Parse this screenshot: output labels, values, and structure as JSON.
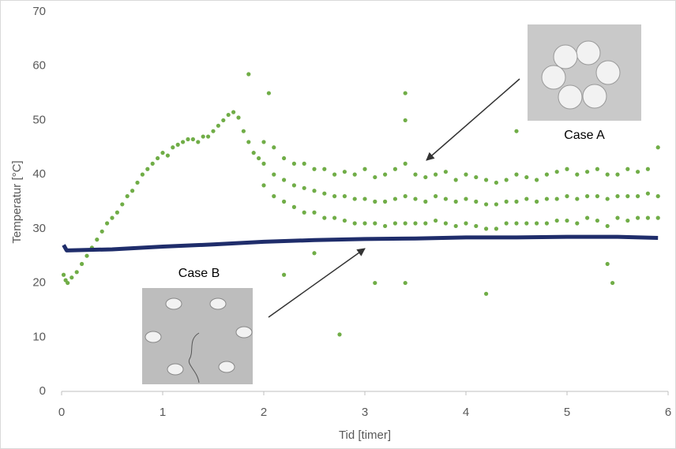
{
  "chart_data": {
    "type": "scatter",
    "xlabel": "Tid [timer]",
    "ylabel": "Temperatur  [°C]",
    "xlim": [
      0,
      6
    ],
    "ylim": [
      0,
      70
    ],
    "xticks": [
      0,
      1,
      2,
      3,
      4,
      5,
      6
    ],
    "yticks": [
      0,
      10,
      20,
      30,
      40,
      50,
      60,
      70
    ],
    "grid": false,
    "series": [
      {
        "name": "Case A",
        "color": "#70ad47",
        "mode": "markers",
        "x": [
          0.02,
          0.04,
          0.06,
          0.1,
          0.15,
          0.2,
          0.25,
          0.3,
          0.35,
          0.4,
          0.45,
          0.5,
          0.55,
          0.6,
          0.65,
          0.7,
          0.75,
          0.8,
          0.85,
          0.9,
          0.95,
          1.0,
          1.05,
          1.1,
          1.15,
          1.2,
          1.25,
          1.3,
          1.35,
          1.4,
          1.45,
          1.5,
          1.55,
          1.6,
          1.65,
          1.7,
          1.75,
          1.8,
          1.85,
          1.9,
          1.95,
          2.0,
          2.0,
          2.0,
          2.1,
          2.1,
          2.1,
          2.2,
          2.2,
          2.2,
          2.3,
          2.3,
          2.3,
          2.4,
          2.4,
          2.4,
          2.5,
          2.5,
          2.5,
          2.6,
          2.6,
          2.6,
          2.7,
          2.7,
          2.7,
          2.8,
          2.8,
          2.8,
          2.9,
          2.9,
          2.9,
          3.0,
          3.0,
          3.0,
          3.1,
          3.1,
          3.1,
          3.2,
          3.2,
          3.2,
          3.3,
          3.3,
          3.3,
          3.4,
          3.4,
          3.4,
          3.5,
          3.5,
          3.5,
          3.6,
          3.6,
          3.6,
          3.7,
          3.7,
          3.7,
          3.8,
          3.8,
          3.8,
          3.9,
          3.9,
          3.9,
          4.0,
          4.0,
          4.0,
          4.1,
          4.1,
          4.1,
          4.2,
          4.2,
          4.2,
          4.3,
          4.3,
          4.3,
          4.4,
          4.4,
          4.4,
          4.5,
          4.5,
          4.5,
          4.6,
          4.6,
          4.6,
          4.7,
          4.7,
          4.7,
          4.8,
          4.8,
          4.8,
          4.9,
          4.9,
          4.9,
          5.0,
          5.0,
          5.0,
          5.1,
          5.1,
          5.1,
          5.2,
          5.2,
          5.2,
          5.3,
          5.3,
          5.3,
          5.4,
          5.4,
          5.4,
          5.5,
          5.5,
          5.5,
          5.6,
          5.6,
          5.6,
          5.7,
          5.7,
          5.7,
          5.8,
          5.8,
          5.8,
          5.9,
          5.9,
          5.9,
          1.85,
          2.05,
          2.2,
          2.75,
          3.1,
          3.4,
          3.4,
          3.4,
          4.2,
          4.5,
          5.4,
          5.45,
          2.5
        ],
        "values": [
          21.5,
          20.5,
          20,
          21,
          22,
          23.5,
          25,
          26.5,
          28,
          29.5,
          31,
          32,
          33,
          34.5,
          36,
          37,
          38.5,
          40,
          41,
          42,
          43,
          44,
          43.5,
          45,
          45.5,
          46,
          46.5,
          46.5,
          46,
          47,
          47,
          48,
          49,
          50,
          51,
          51.5,
          50.5,
          48,
          46,
          44,
          43,
          42,
          46,
          38,
          40,
          45,
          36,
          39,
          43,
          35,
          38,
          42,
          34,
          37.5,
          42,
          33,
          37,
          41,
          33,
          36.5,
          41,
          32,
          36,
          40,
          32,
          36,
          40.5,
          31.5,
          35.5,
          40,
          31,
          35.5,
          41,
          31,
          35,
          39.5,
          31,
          35,
          40,
          30.5,
          35.5,
          41,
          31,
          36,
          42,
          31,
          35.5,
          40,
          31,
          35,
          39.5,
          31,
          36,
          40,
          31.5,
          35.5,
          40.5,
          31,
          35,
          39,
          30.5,
          35.5,
          40,
          31,
          35,
          39.5,
          30.5,
          34.5,
          39,
          30,
          34.5,
          38.5,
          30,
          35,
          39,
          31,
          35,
          40,
          31,
          35.5,
          39.5,
          31,
          35,
          39,
          31,
          35.5,
          40,
          31,
          35.5,
          40.5,
          31.5,
          36,
          41,
          31.5,
          35.5,
          40,
          31,
          36,
          40.5,
          32,
          36,
          41,
          31.5,
          35.5,
          40,
          30.5,
          36,
          40,
          32,
          36,
          41,
          31.5,
          36,
          40.5,
          32,
          36.5,
          41,
          32,
          36,
          45,
          32,
          58.5,
          55,
          21.5,
          10.5,
          20,
          55,
          50,
          20,
          18,
          48,
          23.5,
          20,
          25.5
        ]
      },
      {
        "name": "Case B",
        "color": "#1f2d6b",
        "mode": "line",
        "x": [
          0.02,
          0.05,
          0.5,
          1,
          1.5,
          2,
          2.5,
          3,
          3.5,
          4,
          4.5,
          5,
          5.5,
          5.9
        ],
        "values": [
          27,
          26,
          26.2,
          26.7,
          27.1,
          27.6,
          27.9,
          28.1,
          28.2,
          28.4,
          28.4,
          28.5,
          28.5,
          28.3
        ]
      }
    ]
  }
}
